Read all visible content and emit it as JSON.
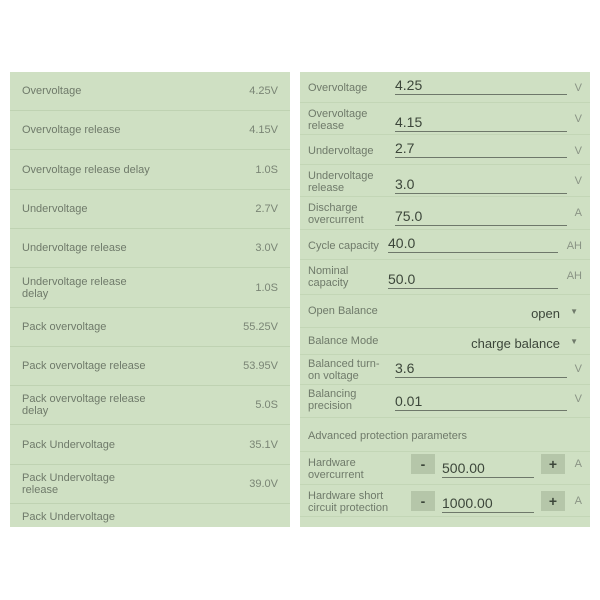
{
  "left_list": [
    {
      "label": "Overvoltage",
      "value": "4.25V"
    },
    {
      "label": "Overvoltage release",
      "value": "4.15V"
    },
    {
      "label": "Overvoltage release delay",
      "value": "1.0S"
    },
    {
      "label": "Undervoltage",
      "value": "2.7V"
    },
    {
      "label": "Undervoltage release",
      "value": "3.0V"
    },
    {
      "label": "Undervoltage release delay",
      "value": "1.0S"
    },
    {
      "label": "Pack overvoltage",
      "value": "55.25V"
    },
    {
      "label": "Pack overvoltage release",
      "value": "53.95V"
    },
    {
      "label": "Pack overvoltage release delay",
      "value": "5.0S"
    },
    {
      "label": "Pack Undervoltage",
      "value": "35.1V"
    },
    {
      "label": "Pack Undervoltage release",
      "value": "39.0V"
    },
    {
      "label": "Pack Undervoltage",
      "value": ""
    }
  ],
  "right_form": {
    "fields": [
      {
        "label": "Overvoltage",
        "value": "4.25",
        "unit": "V"
      },
      {
        "label": "Overvoltage release",
        "value": "4.15",
        "unit": "V"
      },
      {
        "label": "Undervoltage",
        "value": "2.7",
        "unit": "V"
      },
      {
        "label": "Undervoltage release",
        "value": "3.0",
        "unit": "V"
      },
      {
        "label": "Discharge overcurrent",
        "value": "75.0",
        "unit": "A"
      },
      {
        "label": "Cycle capacity",
        "value": "40.0",
        "unit": "AH"
      },
      {
        "label": "Nominal capacity",
        "value": "50.0",
        "unit": "AH"
      }
    ],
    "open_balance": {
      "label": "Open Balance",
      "value": "open"
    },
    "balance_mode": {
      "label": "Balance Mode",
      "value": "charge balance"
    },
    "balance_fields": [
      {
        "label": "Balanced turn-on voltage",
        "value": "3.6",
        "unit": "V"
      },
      {
        "label": "Balancing precision",
        "value": "0.01",
        "unit": "V"
      }
    ],
    "advanced_header": "Advanced protection parameters",
    "steppers": [
      {
        "label": "Hardware overcurrent",
        "value": "500.00",
        "unit": "A",
        "minus": "-",
        "plus": "+"
      },
      {
        "label": "Hardware short circuit protection",
        "value": "1000.00",
        "unit": "A",
        "minus": "-",
        "plus": "+"
      }
    ]
  },
  "colors": {
    "panel_bg": "#cfe0c3",
    "button_bg": "#b5c6a9"
  }
}
